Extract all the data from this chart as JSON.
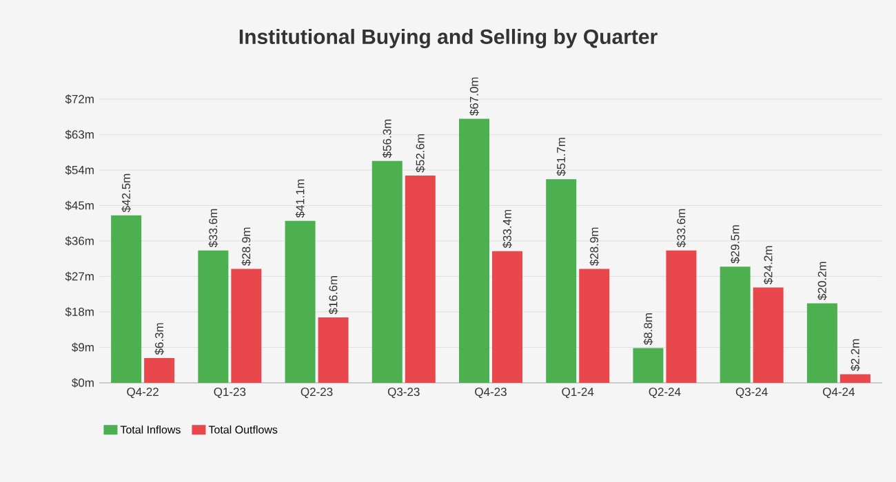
{
  "chart_data": {
    "type": "bar",
    "title": "Institutional Buying and Selling by Quarter",
    "categories": [
      "Q4-22",
      "Q1-23",
      "Q2-23",
      "Q3-23",
      "Q4-23",
      "Q1-24",
      "Q2-24",
      "Q3-24",
      "Q4-24"
    ],
    "series": [
      {
        "name": "Total Inflows",
        "color": "#4caf50",
        "values": [
          42.5,
          33.6,
          41.1,
          56.3,
          67.0,
          51.7,
          8.8,
          29.5,
          20.2
        ],
        "value_labels": [
          "$42.5m",
          "$33.6m",
          "$41.1m",
          "$56.3m",
          "$67.0m",
          "$51.7m",
          "$8.8m",
          "$29.5m",
          "$20.2m"
        ]
      },
      {
        "name": "Total Outflows",
        "color": "#e8474c",
        "values": [
          6.3,
          28.9,
          16.6,
          52.6,
          33.4,
          28.9,
          33.6,
          24.2,
          2.2
        ],
        "value_labels": [
          "$6.3m",
          "$28.9m",
          "$16.6m",
          "$52.6m",
          "$33.4m",
          "$28.9m",
          "$33.6m",
          "$24.2m",
          "$2.2m"
        ]
      }
    ],
    "ylim": [
      0,
      72
    ],
    "yticks": [
      {
        "value": 0,
        "label": "$0m"
      },
      {
        "value": 9,
        "label": "$9m"
      },
      {
        "value": 18,
        "label": "$18m"
      },
      {
        "value": 27,
        "label": "$27m"
      },
      {
        "value": 36,
        "label": "$36m"
      },
      {
        "value": 45,
        "label": "$45m"
      },
      {
        "value": 54,
        "label": "$54m"
      },
      {
        "value": 63,
        "label": "$63m"
      },
      {
        "value": 72,
        "label": "$72m"
      }
    ],
    "grid": "y",
    "legend": "bottom left"
  }
}
